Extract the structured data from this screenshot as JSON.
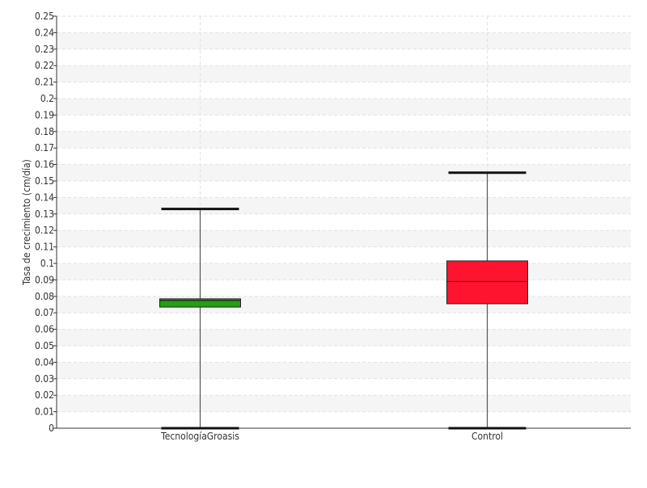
{
  "chart_data": {
    "type": "boxplot",
    "title": "",
    "xlabel": "",
    "ylabel": "Tasa de crecimiento (cm/día)",
    "ylim": [
      0,
      0.25
    ],
    "y_ticks": [
      "0",
      "0.01",
      "0.02",
      "0.03",
      "0.04",
      "0.05",
      "0.06",
      "0.07",
      "0.08",
      "0.09",
      "0.1",
      "0.11",
      "0.12",
      "0.13",
      "0.14",
      "0.15",
      "0.16",
      "0.17",
      "0.18",
      "0.19",
      "0.2",
      "0.21",
      "0.22",
      "0.23",
      "0.24",
      "0.25"
    ],
    "grid": true,
    "categories": [
      "TecnologíaGroasis",
      "Control"
    ],
    "boxes": [
      {
        "category": "TecnologíaGroasis",
        "min": 0.0,
        "q1": 0.0735,
        "median": 0.0775,
        "q3": 0.0785,
        "max": 0.133,
        "color": "#22a012"
      },
      {
        "category": "Control",
        "min": 0.0,
        "q1": 0.0755,
        "median": 0.089,
        "q3": 0.1015,
        "max": 0.155,
        "color": "#ff1430"
      }
    ]
  }
}
